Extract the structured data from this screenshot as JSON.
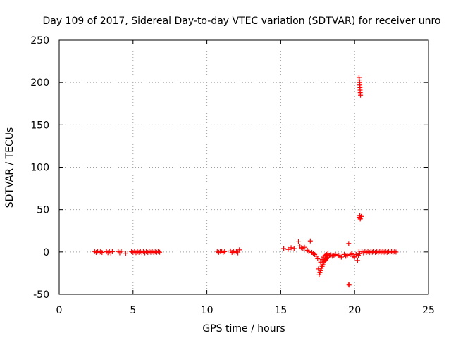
{
  "chart_data": {
    "type": "scatter",
    "title": "Day 109 of 2017, Sidereal Day-to-day VTEC variation (SDTVAR) for receiver unro",
    "xlabel": "GPS time / hours",
    "ylabel": "SDTVAR / TECUs",
    "xlim": [
      0,
      25
    ],
    "ylim": [
      -50,
      250
    ],
    "xticks": [
      0,
      5,
      10,
      15,
      20,
      25
    ],
    "yticks": [
      -50,
      0,
      50,
      100,
      150,
      200,
      250
    ],
    "xtick_labels": [
      "0",
      "5",
      "10",
      "15",
      "20",
      "25"
    ],
    "ytick_labels": [
      "-50",
      "0",
      "50",
      "100",
      "150",
      "200",
      "250"
    ],
    "grid": true,
    "marker": "+",
    "series": [
      {
        "name": "SDTVAR",
        "color": "#ff0000",
        "points": [
          [
            2.4,
            0.5
          ],
          [
            2.5,
            -0.5
          ],
          [
            2.6,
            0.8
          ],
          [
            2.7,
            -0.3
          ],
          [
            2.8,
            0.2
          ],
          [
            2.9,
            -0.6
          ],
          [
            3.2,
            0.4
          ],
          [
            3.3,
            -0.8
          ],
          [
            3.4,
            0.6
          ],
          [
            3.5,
            -1.2
          ],
          [
            3.6,
            0.3
          ],
          [
            4.0,
            0.5
          ],
          [
            4.1,
            -1.0
          ],
          [
            4.2,
            0.7
          ],
          [
            4.5,
            -1.5
          ],
          [
            4.9,
            0.3
          ],
          [
            5.0,
            -0.5
          ],
          [
            5.1,
            0.6
          ],
          [
            5.2,
            -0.8
          ],
          [
            5.3,
            0.2
          ],
          [
            5.4,
            -0.4
          ],
          [
            5.5,
            0.5
          ],
          [
            5.6,
            -0.7
          ],
          [
            5.7,
            0.4
          ],
          [
            5.8,
            -1.0
          ],
          [
            5.9,
            0.3
          ],
          [
            6.0,
            -0.6
          ],
          [
            6.1,
            0.5
          ],
          [
            6.2,
            -0.3
          ],
          [
            6.3,
            0.6
          ],
          [
            6.4,
            -0.5
          ],
          [
            6.5,
            0.2
          ],
          [
            6.6,
            -0.4
          ],
          [
            6.7,
            0.5
          ],
          [
            6.8,
            -0.3
          ],
          [
            10.7,
            0.8
          ],
          [
            10.8,
            -0.4
          ],
          [
            10.9,
            0.6
          ],
          [
            11.0,
            1.0
          ],
          [
            11.1,
            -0.5
          ],
          [
            11.2,
            0.4
          ],
          [
            11.6,
            1.2
          ],
          [
            11.7,
            -0.5
          ],
          [
            11.8,
            0.8
          ],
          [
            11.9,
            -0.3
          ],
          [
            12.0,
            0.6
          ],
          [
            12.1,
            -1.0
          ],
          [
            12.2,
            2.5
          ],
          [
            15.2,
            4.0
          ],
          [
            15.5,
            3.0
          ],
          [
            15.7,
            5.0
          ],
          [
            15.9,
            4.0
          ],
          [
            16.2,
            12.0
          ],
          [
            16.3,
            7.0
          ],
          [
            16.4,
            5.0
          ],
          [
            16.5,
            4.0
          ],
          [
            16.6,
            5.5
          ],
          [
            16.8,
            2.0
          ],
          [
            16.9,
            0.5
          ],
          [
            17.0,
            13.0
          ],
          [
            17.1,
            -0.5
          ],
          [
            17.2,
            -2.0
          ],
          [
            17.3,
            -3.0
          ],
          [
            17.4,
            -5.0
          ],
          [
            17.5,
            -8.0
          ],
          [
            17.55,
            -20.0
          ],
          [
            17.6,
            -27.0
          ],
          [
            17.65,
            -24.0
          ],
          [
            17.7,
            -22.0
          ],
          [
            17.75,
            -19.0
          ],
          [
            17.8,
            -17.0
          ],
          [
            17.85,
            -15.0
          ],
          [
            17.9,
            -13.0
          ],
          [
            17.95,
            -11.0
          ],
          [
            18.0,
            -10.0
          ],
          [
            18.05,
            -9.0
          ],
          [
            18.1,
            -8.0
          ],
          [
            18.15,
            -7.0
          ],
          [
            18.2,
            -6.0
          ],
          [
            17.7,
            -12.0
          ],
          [
            17.8,
            -9.0
          ],
          [
            17.9,
            -6.0
          ],
          [
            18.0,
            -4.0
          ],
          [
            18.1,
            -3.0
          ],
          [
            18.2,
            -2.0
          ],
          [
            18.3,
            -4.0
          ],
          [
            18.4,
            -3.5
          ],
          [
            18.5,
            -5.0
          ],
          [
            18.6,
            -4.0
          ],
          [
            18.7,
            -3.0
          ],
          [
            18.9,
            -4.0
          ],
          [
            19.0,
            -5.0
          ],
          [
            19.1,
            -6.0
          ],
          [
            19.3,
            -3.0
          ],
          [
            19.4,
            -5.0
          ],
          [
            19.5,
            -4.0
          ],
          [
            19.6,
            -38.0
          ],
          [
            19.62,
            -39.0
          ],
          [
            19.6,
            10.0
          ],
          [
            19.7,
            -3.0
          ],
          [
            19.8,
            -2.0
          ],
          [
            19.9,
            -5.0
          ],
          [
            20.0,
            -6.0
          ],
          [
            20.1,
            -3.0
          ],
          [
            20.2,
            -10.0
          ],
          [
            20.25,
            -4.0
          ],
          [
            20.3,
            1.0
          ],
          [
            20.35,
            -2.0
          ],
          [
            20.3,
            41.0
          ],
          [
            20.35,
            43.0
          ],
          [
            20.4,
            40.0
          ],
          [
            20.45,
            42.0
          ],
          [
            20.38,
            39.0
          ],
          [
            20.3,
            206.0
          ],
          [
            20.32,
            203.0
          ],
          [
            20.34,
            200.0
          ],
          [
            20.35,
            197.0
          ],
          [
            20.36,
            194.0
          ],
          [
            20.37,
            191.0
          ],
          [
            20.38,
            188.0
          ],
          [
            20.4,
            185.0
          ],
          [
            20.5,
            0.5
          ],
          [
            20.6,
            -1.0
          ],
          [
            20.7,
            0.8
          ],
          [
            20.8,
            -0.5
          ],
          [
            20.9,
            0.3
          ],
          [
            21.0,
            -0.6
          ],
          [
            21.1,
            0.5
          ],
          [
            21.2,
            -0.3
          ],
          [
            21.3,
            0.6
          ],
          [
            21.4,
            -0.5
          ],
          [
            21.5,
            0.2
          ],
          [
            21.6,
            -0.4
          ],
          [
            21.7,
            0.5
          ],
          [
            21.8,
            -0.3
          ],
          [
            21.9,
            0.4
          ],
          [
            22.0,
            -0.2
          ],
          [
            22.1,
            0.5
          ],
          [
            22.2,
            -0.4
          ],
          [
            22.3,
            0.3
          ],
          [
            22.4,
            -0.2
          ],
          [
            22.5,
            0.4
          ],
          [
            22.6,
            -0.3
          ],
          [
            22.7,
            0.2
          ],
          [
            22.8,
            -0.1
          ]
        ]
      }
    ]
  }
}
